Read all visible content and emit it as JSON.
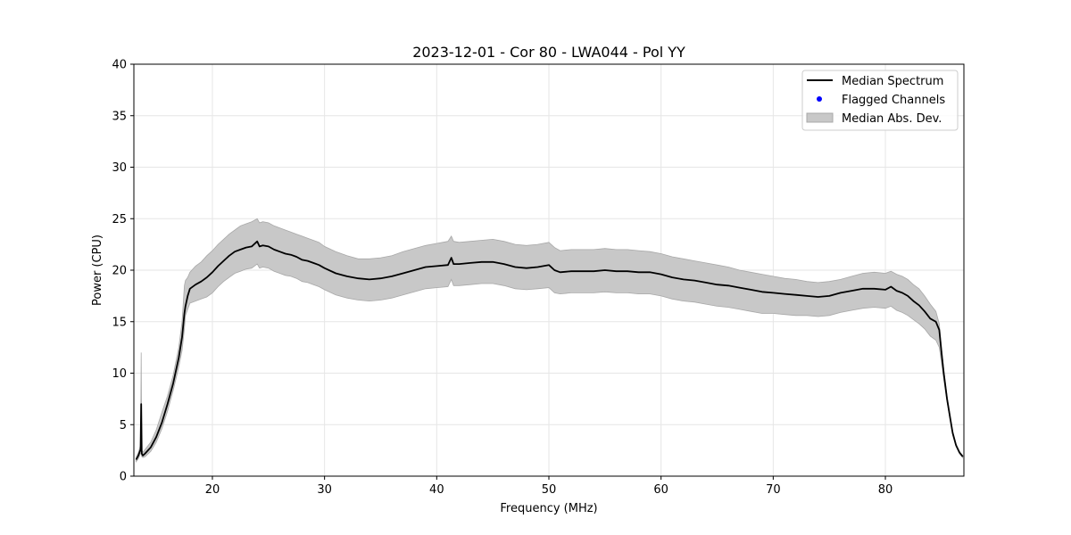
{
  "chart_data": {
    "type": "line",
    "title": "2023-12-01 - Cor 80 - LWA044 - Pol YY",
    "xlabel": "Frequency (MHz)",
    "ylabel": "Power (CPU)",
    "xlim": [
      13.0,
      87.0
    ],
    "ylim": [
      0,
      40
    ],
    "xticks": [
      20,
      30,
      40,
      50,
      60,
      70,
      80
    ],
    "yticks": [
      0,
      5,
      10,
      15,
      20,
      25,
      30,
      35,
      40
    ],
    "xtick_labels": [
      "20",
      "30",
      "40",
      "50",
      "60",
      "70",
      "80"
    ],
    "ytick_labels": [
      "0",
      "5",
      "10",
      "15",
      "20",
      "25",
      "30",
      "35",
      "40"
    ],
    "grid": true,
    "legend_position": "top-right",
    "series": [
      {
        "name": "Median Spectrum",
        "kind": "line",
        "color": "#000000",
        "x": [
          13.2,
          13.4,
          13.6,
          13.65,
          13.7,
          13.8,
          14.0,
          14.5,
          15.0,
          15.5,
          16.0,
          16.5,
          17.0,
          17.3,
          17.5,
          17.6,
          17.8,
          18.0,
          18.5,
          19.0,
          19.5,
          20.0,
          20.5,
          21.0,
          21.5,
          22.0,
          22.5,
          23.0,
          23.5,
          24.0,
          24.2,
          24.5,
          25.0,
          25.5,
          26.0,
          26.5,
          27.0,
          27.5,
          28.0,
          28.5,
          29.0,
          29.5,
          30.0,
          31.0,
          32.0,
          33.0,
          34.0,
          35.0,
          36.0,
          37.0,
          38.0,
          39.0,
          40.0,
          41.0,
          41.3,
          41.5,
          42.0,
          43.0,
          44.0,
          45.0,
          46.0,
          47.0,
          48.0,
          49.0,
          50.0,
          50.5,
          51.0,
          52.0,
          53.0,
          54.0,
          55.0,
          56.0,
          57.0,
          58.0,
          59.0,
          60.0,
          61.0,
          62.0,
          63.0,
          64.0,
          65.0,
          66.0,
          67.0,
          68.0,
          69.0,
          70.0,
          71.0,
          72.0,
          73.0,
          74.0,
          75.0,
          76.0,
          77.0,
          78.0,
          79.0,
          80.0,
          80.5,
          81.0,
          81.5,
          82.0,
          82.5,
          83.0,
          83.5,
          84.0,
          84.5,
          84.8,
          85.0,
          85.2,
          85.5,
          85.8,
          86.0,
          86.3,
          86.6,
          86.9
        ],
        "y": [
          1.6,
          2.0,
          2.6,
          7.0,
          2.2,
          2.0,
          2.2,
          2.8,
          3.8,
          5.2,
          7.0,
          9.0,
          11.5,
          13.5,
          15.8,
          16.5,
          17.5,
          18.2,
          18.6,
          18.9,
          19.3,
          19.8,
          20.4,
          20.9,
          21.4,
          21.8,
          22.0,
          22.2,
          22.3,
          22.8,
          22.3,
          22.4,
          22.3,
          22.0,
          21.8,
          21.6,
          21.5,
          21.3,
          21.0,
          20.9,
          20.7,
          20.5,
          20.2,
          19.7,
          19.4,
          19.2,
          19.1,
          19.2,
          19.4,
          19.7,
          20.0,
          20.3,
          20.4,
          20.5,
          21.2,
          20.6,
          20.6,
          20.7,
          20.8,
          20.8,
          20.6,
          20.3,
          20.2,
          20.3,
          20.5,
          20.0,
          19.8,
          19.9,
          19.9,
          19.9,
          20.0,
          19.9,
          19.9,
          19.8,
          19.8,
          19.6,
          19.3,
          19.1,
          19.0,
          18.8,
          18.6,
          18.5,
          18.3,
          18.1,
          17.9,
          17.8,
          17.7,
          17.6,
          17.5,
          17.4,
          17.5,
          17.8,
          18.0,
          18.2,
          18.2,
          18.1,
          18.4,
          18.0,
          17.8,
          17.5,
          17.0,
          16.6,
          16.0,
          15.3,
          15.0,
          14.2,
          12.0,
          10.0,
          7.5,
          5.5,
          4.2,
          3.0,
          2.3,
          1.9
        ]
      },
      {
        "name": "Flagged Channels",
        "kind": "scatter",
        "color": "#0000ff",
        "x": [],
        "y": []
      },
      {
        "name": "Median Abs. Dev.",
        "kind": "band",
        "color": "#c8c8c8",
        "edge_color": "#a8a8a8",
        "x": [
          13.2,
          13.4,
          13.6,
          13.65,
          13.7,
          13.8,
          14.0,
          14.5,
          15.0,
          15.5,
          16.0,
          16.5,
          17.0,
          17.3,
          17.5,
          17.6,
          17.8,
          18.0,
          18.5,
          19.0,
          19.5,
          20.0,
          20.5,
          21.0,
          21.5,
          22.0,
          22.5,
          23.0,
          23.5,
          24.0,
          24.2,
          24.5,
          25.0,
          25.5,
          26.0,
          26.5,
          27.0,
          27.5,
          28.0,
          28.5,
          29.0,
          29.5,
          30.0,
          31.0,
          32.0,
          33.0,
          34.0,
          35.0,
          36.0,
          37.0,
          38.0,
          39.0,
          40.0,
          41.0,
          41.3,
          41.5,
          42.0,
          43.0,
          44.0,
          45.0,
          46.0,
          47.0,
          48.0,
          49.0,
          50.0,
          50.5,
          51.0,
          52.0,
          53.0,
          54.0,
          55.0,
          56.0,
          57.0,
          58.0,
          59.0,
          60.0,
          61.0,
          62.0,
          63.0,
          64.0,
          65.0,
          66.0,
          67.0,
          68.0,
          69.0,
          70.0,
          71.0,
          72.0,
          73.0,
          74.0,
          75.0,
          76.0,
          77.0,
          78.0,
          79.0,
          80.0,
          80.5,
          81.0,
          81.5,
          82.0,
          82.5,
          83.0,
          83.5,
          84.0,
          84.5,
          84.8,
          85.0,
          85.2,
          85.5,
          85.8,
          86.0,
          86.3,
          86.6,
          86.9
        ],
        "upper": [
          1.8,
          2.3,
          3.0,
          12.0,
          2.6,
          2.3,
          2.6,
          3.3,
          4.5,
          6.2,
          7.8,
          9.8,
          12.5,
          15.0,
          18.5,
          19.0,
          19.3,
          19.8,
          20.4,
          20.8,
          21.4,
          21.9,
          22.5,
          23.0,
          23.5,
          23.9,
          24.3,
          24.5,
          24.7,
          25.0,
          24.6,
          24.7,
          24.6,
          24.3,
          24.1,
          23.9,
          23.7,
          23.5,
          23.3,
          23.1,
          22.9,
          22.7,
          22.3,
          21.8,
          21.4,
          21.1,
          21.1,
          21.2,
          21.4,
          21.8,
          22.1,
          22.4,
          22.6,
          22.8,
          23.3,
          22.8,
          22.7,
          22.8,
          22.9,
          23.0,
          22.8,
          22.5,
          22.4,
          22.5,
          22.7,
          22.2,
          21.9,
          22.0,
          22.0,
          22.0,
          22.1,
          22.0,
          22.0,
          21.9,
          21.8,
          21.6,
          21.3,
          21.1,
          20.9,
          20.7,
          20.5,
          20.3,
          20.0,
          19.8,
          19.6,
          19.4,
          19.2,
          19.1,
          18.9,
          18.8,
          18.9,
          19.1,
          19.4,
          19.7,
          19.8,
          19.7,
          19.9,
          19.6,
          19.4,
          19.1,
          18.6,
          18.2,
          17.5,
          16.7,
          16.0,
          14.8,
          12.5,
          10.4,
          7.8,
          5.7,
          4.4,
          3.1,
          2.4,
          2.0
        ],
        "lower": [
          1.4,
          1.7,
          2.2,
          2.2,
          1.9,
          1.8,
          1.9,
          2.4,
          3.3,
          4.6,
          6.3,
          8.3,
          10.6,
          12.2,
          14.3,
          15.6,
          16.2,
          16.8,
          17.0,
          17.2,
          17.4,
          17.8,
          18.4,
          18.9,
          19.3,
          19.7,
          19.9,
          20.1,
          20.2,
          20.6,
          20.2,
          20.3,
          20.2,
          19.9,
          19.7,
          19.5,
          19.4,
          19.2,
          18.9,
          18.8,
          18.6,
          18.4,
          18.1,
          17.6,
          17.3,
          17.1,
          17.0,
          17.1,
          17.3,
          17.6,
          17.9,
          18.2,
          18.3,
          18.4,
          19.1,
          18.5,
          18.5,
          18.6,
          18.7,
          18.7,
          18.5,
          18.2,
          18.1,
          18.2,
          18.3,
          17.8,
          17.7,
          17.8,
          17.8,
          17.8,
          17.9,
          17.8,
          17.8,
          17.7,
          17.7,
          17.5,
          17.2,
          17.0,
          16.9,
          16.7,
          16.5,
          16.4,
          16.2,
          16.0,
          15.8,
          15.8,
          15.7,
          15.6,
          15.6,
          15.5,
          15.6,
          15.9,
          16.1,
          16.3,
          16.4,
          16.3,
          16.5,
          16.1,
          15.9,
          15.6,
          15.2,
          14.8,
          14.3,
          13.6,
          13.2,
          12.5,
          11.0,
          9.4,
          7.2,
          5.3,
          4.0,
          2.9,
          2.2,
          1.8
        ]
      }
    ]
  }
}
